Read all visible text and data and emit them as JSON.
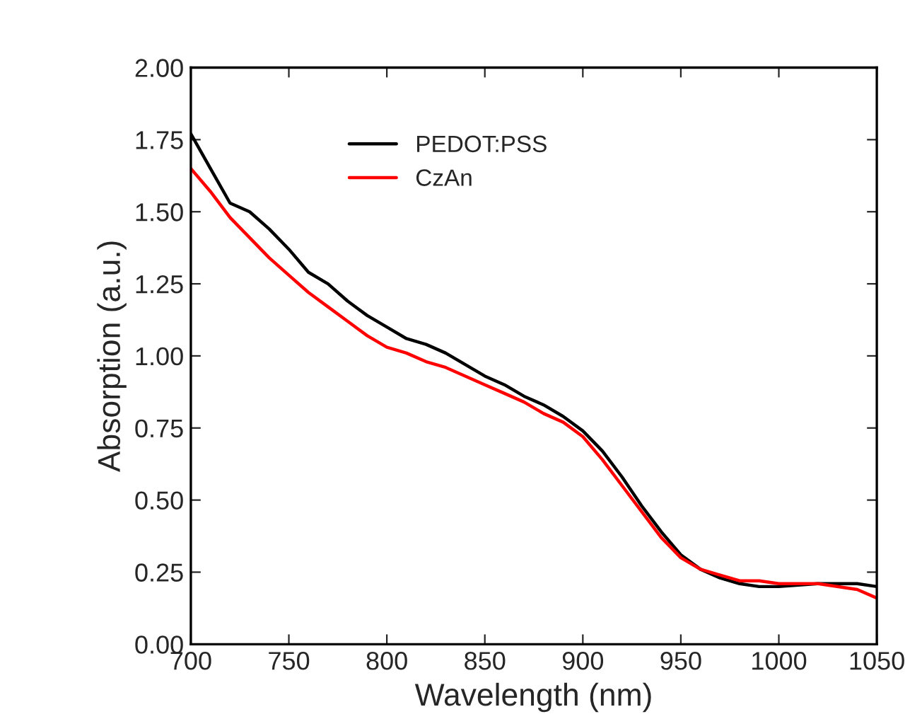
{
  "chart_data": {
    "type": "line",
    "xlabel": "Wavelength (nm)",
    "ylabel": "Absorption (a.u.)",
    "xlim": [
      700,
      1050
    ],
    "ylim": [
      0,
      2
    ],
    "xticks": [
      700,
      750,
      800,
      850,
      900,
      950,
      1000,
      1050
    ],
    "yticks": [
      {
        "value": 0,
        "label": "0.00"
      },
      {
        "value": 0.25,
        "label": "0.25"
      },
      {
        "value": 0.5,
        "label": "0.50"
      },
      {
        "value": 0.75,
        "label": "0.75"
      },
      {
        "value": 1,
        "label": "1.00"
      },
      {
        "value": 1.25,
        "label": "1.25"
      },
      {
        "value": 1.5,
        "label": "1.50"
      },
      {
        "value": 1.75,
        "label": "1.75"
      },
      {
        "value": 2,
        "label": "2.00"
      }
    ],
    "grid": false,
    "legend": "top left",
    "x": [
      700,
      710,
      720,
      730,
      740,
      750,
      760,
      770,
      780,
      790,
      800,
      810,
      820,
      830,
      840,
      850,
      860,
      870,
      880,
      890,
      900,
      910,
      920,
      930,
      940,
      950,
      960,
      970,
      980,
      990,
      1000,
      1020,
      1040,
      1050
    ],
    "series": [
      {
        "name": "PEDOT:PSS",
        "color": "#000000",
        "values": [
          1.77,
          1.65,
          1.53,
          1.5,
          1.44,
          1.37,
          1.29,
          1.25,
          1.19,
          1.14,
          1.1,
          1.06,
          1.04,
          1.01,
          0.97,
          0.93,
          0.9,
          0.86,
          0.83,
          0.79,
          0.74,
          0.67,
          0.58,
          0.48,
          0.39,
          0.31,
          0.26,
          0.23,
          0.21,
          0.2,
          0.2,
          0.21,
          0.21,
          0.2
        ]
      },
      {
        "name": "CzAn",
        "color": "#ff0000",
        "values": [
          1.65,
          1.57,
          1.48,
          1.41,
          1.34,
          1.28,
          1.22,
          1.17,
          1.12,
          1.07,
          1.03,
          1.01,
          0.98,
          0.96,
          0.93,
          0.9,
          0.87,
          0.84,
          0.8,
          0.77,
          0.72,
          0.64,
          0.55,
          0.46,
          0.37,
          0.3,
          0.26,
          0.24,
          0.22,
          0.22,
          0.21,
          0.21,
          0.19,
          0.16
        ]
      }
    ]
  }
}
